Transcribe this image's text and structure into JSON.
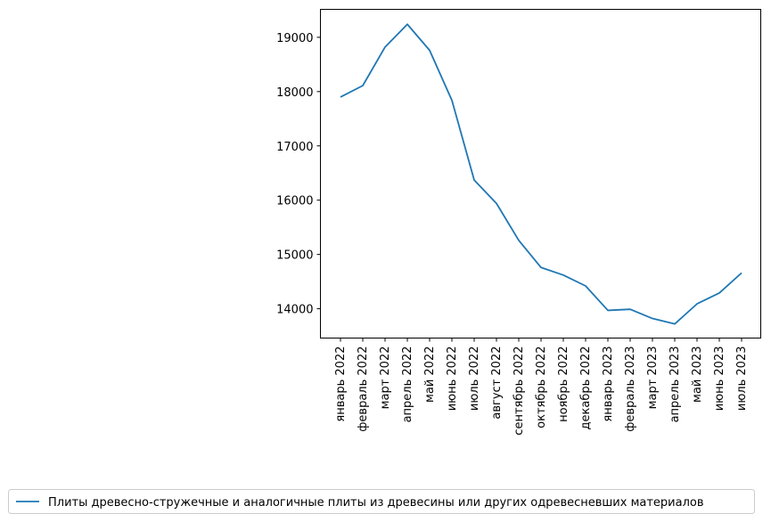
{
  "chart_data": {
    "type": "line",
    "categories": [
      "январь 2022",
      "февраль 2022",
      "март 2022",
      "апрель 2022",
      "май 2022",
      "июнь 2022",
      "июль 2022",
      "август 2022",
      "сентябрь 2022",
      "октябрь 2022",
      "ноябрь 2022",
      "декабрь 2022",
      "январь 2023",
      "февраль 2023",
      "март 2023",
      "апрель 2023",
      "май 2023",
      "июнь 2023",
      "июль 2023"
    ],
    "series": [
      {
        "name": "Плиты древесно-стружечные и аналогичные плиты из древесины или других одревесневших материалов",
        "color": "#1f77b4",
        "values": [
          17900,
          18110,
          18820,
          19240,
          18760,
          17840,
          16370,
          15940,
          15260,
          14760,
          14620,
          14420,
          13970,
          13990,
          13820,
          13720,
          14090,
          14290,
          14660
        ]
      }
    ],
    "yticks": [
      14000,
      15000,
      16000,
      17000,
      18000,
      19000
    ],
    "ytick_labels": [
      "14000",
      "15000",
      "16000",
      "17000",
      "18000",
      "19000"
    ],
    "ylim": [
      13460,
      19515
    ],
    "grid": false,
    "legend_position": "bottom-center"
  }
}
